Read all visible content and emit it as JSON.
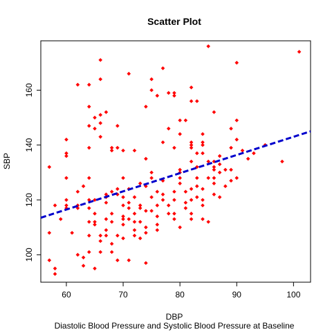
{
  "chart_data": {
    "type": "scatter",
    "title": "Scatter Plot",
    "xlabel": "DBP",
    "ylabel": "SBP",
    "subtitle": "Diastolic Blood Pressure and Systolic Blood Pressure at Baseline",
    "xlim": [
      55.5,
      103
    ],
    "ylim": [
      90,
      178
    ],
    "xticks": [
      60,
      70,
      80,
      90,
      100
    ],
    "yticks": [
      100,
      120,
      140,
      160
    ],
    "grid": false,
    "point_color": "#ff0000",
    "line_color": "#0000cc",
    "fit_line": {
      "x": [
        55.5,
        103
      ],
      "y": [
        113.5,
        145
      ]
    },
    "points": [
      [
        57,
        132
      ],
      [
        57,
        108
      ],
      [
        57,
        98
      ],
      [
        58,
        95
      ],
      [
        58,
        93
      ],
      [
        58,
        118
      ],
      [
        59,
        113
      ],
      [
        60,
        142
      ],
      [
        60,
        137
      ],
      [
        60,
        136
      ],
      [
        60,
        118
      ],
      [
        60,
        117
      ],
      [
        60,
        128
      ],
      [
        60,
        120
      ],
      [
        61,
        108
      ],
      [
        62,
        162
      ],
      [
        62,
        123
      ],
      [
        62,
        118
      ],
      [
        62,
        117
      ],
      [
        62,
        100
      ],
      [
        63,
        125
      ],
      [
        63,
        99
      ],
      [
        63,
        96
      ],
      [
        64,
        162
      ],
      [
        64,
        154
      ],
      [
        64,
        147
      ],
      [
        64,
        139
      ],
      [
        64,
        128
      ],
      [
        64,
        120
      ],
      [
        64,
        117
      ],
      [
        64,
        112
      ],
      [
        64,
        107
      ],
      [
        64,
        101
      ],
      [
        65,
        150
      ],
      [
        65,
        146
      ],
      [
        65,
        120
      ],
      [
        65,
        115
      ],
      [
        65,
        112
      ],
      [
        65,
        111
      ],
      [
        65,
        95
      ],
      [
        66,
        171
      ],
      [
        66,
        164
      ],
      [
        66,
        151
      ],
      [
        66,
        148
      ],
      [
        66,
        143
      ],
      [
        66,
        107
      ],
      [
        66,
        105
      ],
      [
        66,
        101
      ],
      [
        67,
        152
      ],
      [
        67,
        122
      ],
      [
        67,
        121
      ],
      [
        67,
        119
      ],
      [
        67,
        113
      ],
      [
        67,
        109
      ],
      [
        67,
        107
      ],
      [
        68,
        139
      ],
      [
        68,
        138
      ],
      [
        68,
        123
      ],
      [
        68,
        115
      ],
      [
        68,
        112
      ],
      [
        68,
        104
      ],
      [
        68,
        101
      ],
      [
        69,
        147
      ],
      [
        69,
        139
      ],
      [
        69,
        124
      ],
      [
        69,
        122
      ],
      [
        69,
        107
      ],
      [
        69,
        98
      ],
      [
        70,
        138
      ],
      [
        70,
        128
      ],
      [
        70,
        121
      ],
      [
        70,
        118
      ],
      [
        70,
        114
      ],
      [
        70,
        113
      ],
      [
        70,
        111
      ],
      [
        70,
        106
      ],
      [
        71,
        166
      ],
      [
        71,
        124
      ],
      [
        71,
        119
      ],
      [
        71,
        117
      ],
      [
        71,
        113
      ],
      [
        71,
        98
      ],
      [
        72,
        138
      ],
      [
        72,
        121
      ],
      [
        72,
        115
      ],
      [
        72,
        112
      ],
      [
        72,
        109
      ],
      [
        72,
        107
      ],
      [
        73,
        126
      ],
      [
        73,
        118
      ],
      [
        73,
        117
      ],
      [
        73,
        112
      ],
      [
        73,
        106
      ],
      [
        74,
        154
      ],
      [
        74,
        135
      ],
      [
        74,
        125
      ],
      [
        74,
        116
      ],
      [
        74,
        110
      ],
      [
        74,
        108
      ],
      [
        74,
        97
      ],
      [
        75,
        164
      ],
      [
        75,
        160
      ],
      [
        75,
        130
      ],
      [
        75,
        128
      ],
      [
        75,
        121
      ],
      [
        75,
        116
      ],
      [
        76,
        158
      ],
      [
        76,
        123
      ],
      [
        76,
        118
      ],
      [
        76,
        114
      ],
      [
        76,
        111
      ],
      [
        76,
        109
      ],
      [
        77,
        168
      ],
      [
        77,
        141
      ],
      [
        77,
        127
      ],
      [
        77,
        122
      ],
      [
        77,
        120
      ],
      [
        78,
        159
      ],
      [
        78,
        146
      ],
      [
        78,
        118
      ],
      [
        78,
        115
      ],
      [
        79,
        159
      ],
      [
        79,
        158
      ],
      [
        79,
        139
      ],
      [
        79,
        123
      ],
      [
        79,
        120
      ],
      [
        79,
        115
      ],
      [
        79,
        113
      ],
      [
        80,
        149
      ],
      [
        80,
        144
      ],
      [
        80,
        131
      ],
      [
        80,
        130
      ],
      [
        80,
        128
      ],
      [
        80,
        126
      ],
      [
        80,
        110
      ],
      [
        81,
        149
      ],
      [
        81,
        123
      ],
      [
        81,
        119
      ],
      [
        81,
        117
      ],
      [
        82,
        161
      ],
      [
        82,
        156
      ],
      [
        82,
        141
      ],
      [
        82,
        140
      ],
      [
        82,
        139
      ],
      [
        82,
        134
      ],
      [
        82,
        124
      ],
      [
        82,
        120
      ],
      [
        82,
        115
      ],
      [
        82,
        113
      ],
      [
        83,
        156
      ],
      [
        83,
        137
      ],
      [
        83,
        132
      ],
      [
        83,
        128
      ],
      [
        83,
        125
      ],
      [
        83,
        121
      ],
      [
        84,
        144
      ],
      [
        84,
        141
      ],
      [
        84,
        140
      ],
      [
        84,
        137
      ],
      [
        84,
        124
      ],
      [
        84,
        120
      ],
      [
        84,
        118
      ],
      [
        84,
        113
      ],
      [
        85,
        176
      ],
      [
        85,
        134
      ],
      [
        85,
        128
      ],
      [
        85,
        112
      ],
      [
        86,
        152
      ],
      [
        86,
        134
      ],
      [
        86,
        132
      ],
      [
        86,
        131
      ],
      [
        86,
        128
      ],
      [
        86,
        126
      ],
      [
        86,
        122
      ],
      [
        87,
        136
      ],
      [
        87,
        133
      ],
      [
        87,
        130
      ],
      [
        87,
        121
      ],
      [
        88,
        131
      ],
      [
        88,
        125
      ],
      [
        89,
        146
      ],
      [
        89,
        139
      ],
      [
        89,
        131
      ],
      [
        89,
        127
      ],
      [
        90,
        170
      ],
      [
        90,
        149
      ],
      [
        90,
        142
      ],
      [
        90,
        128
      ],
      [
        91,
        138
      ],
      [
        92,
        135
      ],
      [
        93,
        137
      ],
      [
        95,
        140
      ],
      [
        98,
        134
      ],
      [
        101,
        174
      ]
    ]
  }
}
